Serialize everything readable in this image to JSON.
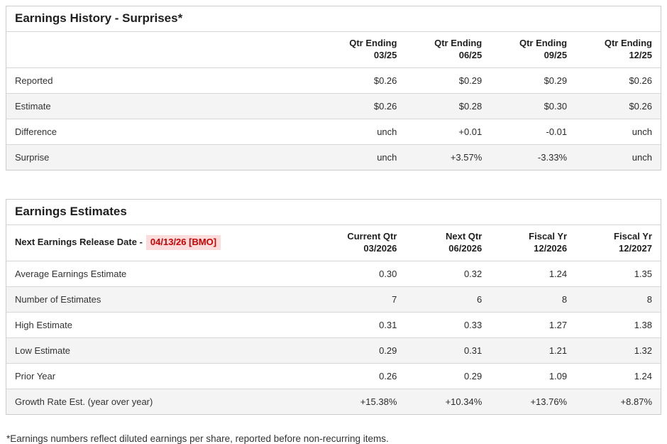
{
  "colors": {
    "positive": "#1e9a78",
    "negative": "#c64a4a",
    "alert-red": "#cc0000",
    "alert-bg": "#fbdcdc"
  },
  "history": {
    "title": "Earnings History - Surprises*",
    "columns": [
      {
        "line1": "Qtr Ending",
        "line2": "03/25"
      },
      {
        "line1": "Qtr Ending",
        "line2": "06/25"
      },
      {
        "line1": "Qtr Ending",
        "line2": "09/25"
      },
      {
        "line1": "Qtr Ending",
        "line2": "12/25"
      }
    ],
    "rows": [
      {
        "label": "Reported",
        "values": [
          "$0.26",
          "$0.29",
          "$0.29",
          "$0.26"
        ]
      },
      {
        "label": "Estimate",
        "values": [
          "$0.26",
          "$0.28",
          "$0.30",
          "$0.26"
        ]
      },
      {
        "label": "Difference",
        "values": [
          "unch",
          "+0.01",
          "-0.01",
          "unch"
        ]
      },
      {
        "label": "Surprise",
        "values": [
          "unch",
          "+3.57%",
          "-3.33%",
          "unch"
        ]
      }
    ]
  },
  "estimates": {
    "title": "Earnings Estimates",
    "release_label": "Next Earnings Release Date -",
    "release_date": "04/13/26 [BMO]",
    "columns": [
      {
        "line1": "Current Qtr",
        "line2": "03/2026"
      },
      {
        "line1": "Next Qtr",
        "line2": "06/2026"
      },
      {
        "line1": "Fiscal Yr",
        "line2": "12/2026"
      },
      {
        "line1": "Fiscal Yr",
        "line2": "12/2027"
      }
    ],
    "rows": [
      {
        "label": "Average Earnings Estimate",
        "values": [
          "0.30",
          "0.32",
          "1.24",
          "1.35"
        ]
      },
      {
        "label": "Number of Estimates",
        "values": [
          "7",
          "6",
          "8",
          "8"
        ]
      },
      {
        "label": "High Estimate",
        "values": [
          "0.31",
          "0.33",
          "1.27",
          "1.38"
        ]
      },
      {
        "label": "Low Estimate",
        "values": [
          "0.29",
          "0.31",
          "1.21",
          "1.32"
        ]
      },
      {
        "label": "Prior Year",
        "values": [
          "0.26",
          "0.29",
          "1.09",
          "1.24"
        ]
      },
      {
        "label": "Growth Rate Est. (year over year)",
        "values": [
          "+15.38%",
          "+10.34%",
          "+13.76%",
          "+8.87%"
        ]
      }
    ]
  },
  "footnote": "*Earnings numbers reflect diluted earnings per share, reported before non-recurring items."
}
